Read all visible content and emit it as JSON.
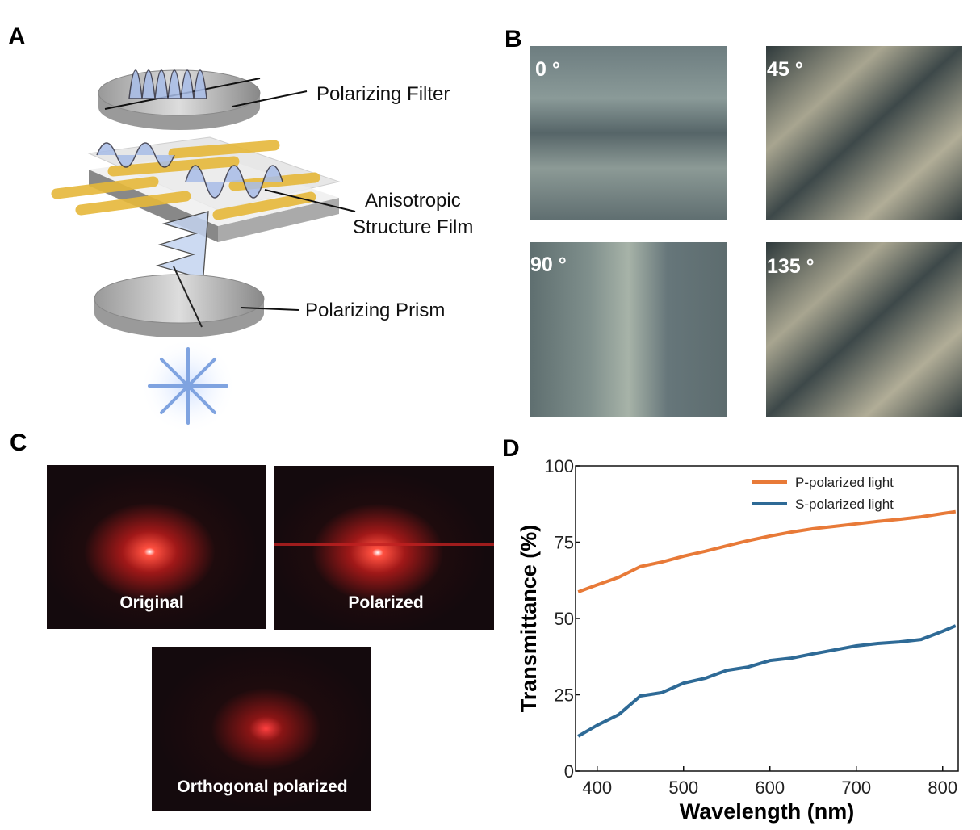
{
  "panel_a": {
    "label": "A",
    "labels": [
      "Polarizing Filter",
      "Anisotropic",
      "Structure Film",
      "Polarizing Prism"
    ]
  },
  "panel_b": {
    "label": "B",
    "images": [
      "0 °",
      "45 °",
      "90 °",
      "135 °"
    ]
  },
  "panel_c": {
    "label": "C",
    "images": [
      "Original",
      "Polarized",
      "Orthogonal polarized"
    ]
  },
  "chart_data": {
    "type": "line",
    "label": "D",
    "xlabel": "Wavelength (nm)",
    "ylabel": "Transmittance (%)",
    "x": [
      378,
      400,
      425,
      450,
      475,
      500,
      525,
      550,
      575,
      600,
      625,
      650,
      675,
      700,
      725,
      750,
      775,
      800,
      815
    ],
    "series": [
      {
        "name": "P-polarized light",
        "color": "#e87a38",
        "values": [
          58.7,
          61,
          63.5,
          67,
          68.5,
          70.4,
          72,
          73.8,
          75.5,
          77,
          78.3,
          79.4,
          80.2,
          81,
          81.8,
          82.5,
          83.3,
          84.4,
          85
        ]
      },
      {
        "name": "S-polarized light",
        "color": "#2e6a96",
        "values": [
          11.4,
          15,
          18.5,
          24.6,
          25.7,
          28.8,
          30.4,
          33,
          34.1,
          36.2,
          37,
          38.4,
          39.7,
          41,
          41.8,
          42.3,
          43.1,
          45.8,
          47.6
        ]
      }
    ],
    "xlim": [
      375,
      818
    ],
    "xticks": [
      400,
      500,
      600,
      700,
      800
    ],
    "ylim": [
      0,
      100
    ],
    "yticks": [
      0,
      25,
      50,
      75,
      100
    ],
    "legend": "upper right"
  }
}
